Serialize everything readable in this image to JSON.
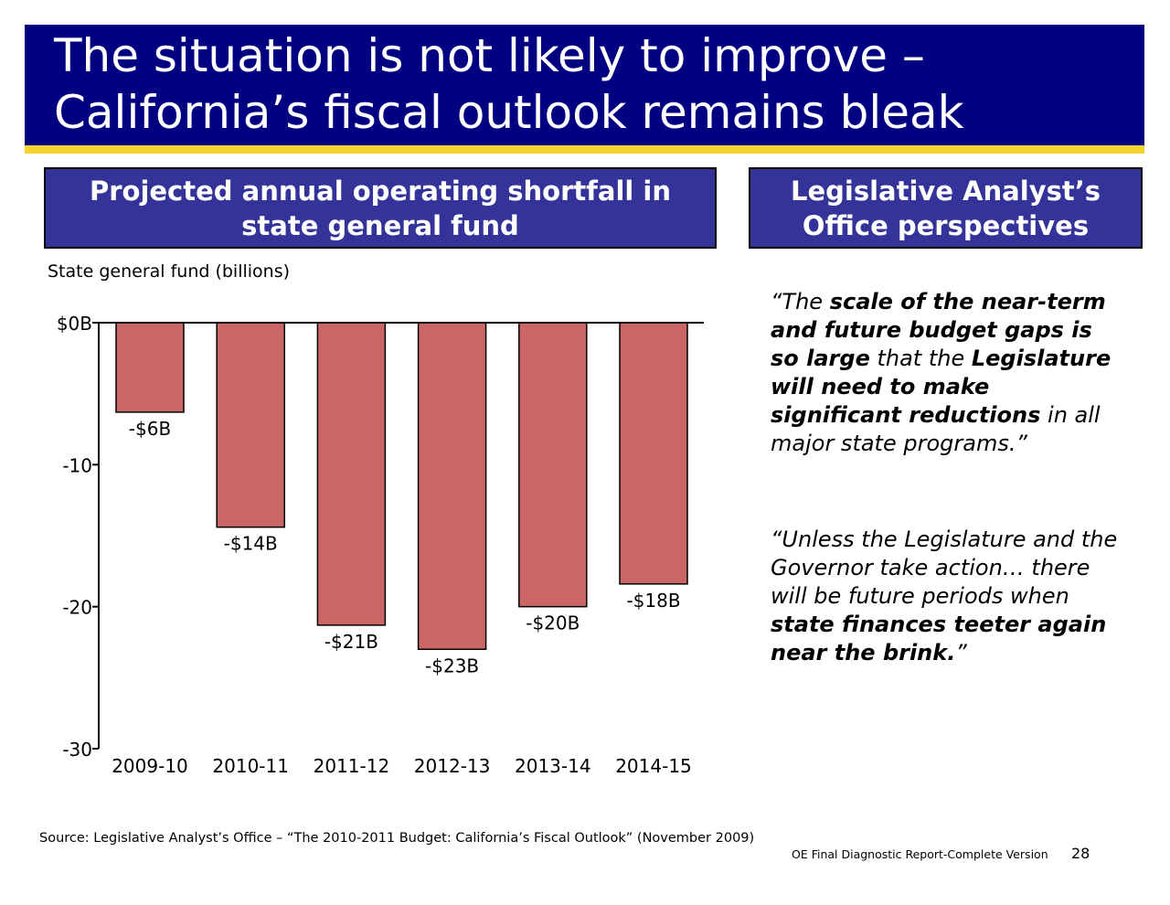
{
  "title": {
    "line1": "The situation is not likely to improve –",
    "line2": "California’s fiscal outlook remains bleak"
  },
  "left_header": {
    "line1": "Projected annual operating shortfall in",
    "line2": "state general fund"
  },
  "right_header": {
    "line1": "Legislative Analyst’s",
    "line2": "Office perspectives"
  },
  "colors": {
    "title_band": "#000080",
    "title_stripe": "#f5d22e",
    "header_box": "#33339a",
    "bar_fill": "#cc6666"
  },
  "chart_data": {
    "type": "bar",
    "unit_label": "State general fund (billions)",
    "categories": [
      "2009-10",
      "2010-11",
      "2011-12",
      "2012-13",
      "2013-14",
      "2014-15"
    ],
    "values": [
      -6.3,
      -14.4,
      -21.3,
      -23,
      -20,
      -18.4
    ],
    "data_labels": [
      "-$6B",
      "-$14B",
      "-$21B",
      "-$23B",
      "-$20B",
      "-$18B"
    ],
    "yticks": [
      0,
      -10,
      -20,
      -30
    ],
    "ytick_labels": [
      "$0B",
      "-10",
      "-20",
      "-30"
    ],
    "ylim": [
      -30,
      0
    ],
    "grid": false,
    "legend": "none"
  },
  "quotes": {
    "q1": [
      {
        "text": "“The ",
        "bold": false
      },
      {
        "text": "scale of the near-term and future budget gaps is so large",
        "bold": true
      },
      {
        "text": " that the ",
        "bold": false
      },
      {
        "text": "Legislature will need to make significant reductions",
        "bold": true
      },
      {
        "text": " in all major state programs.”",
        "bold": false
      }
    ],
    "q2": [
      {
        "text": "“Unless the Legislature and the Governor take action… there will be future periods when ",
        "bold": false
      },
      {
        "text": "state finances teeter again near the brink.",
        "bold": true
      },
      {
        "text": "”",
        "bold": false
      }
    ]
  },
  "footer": {
    "source": "Source: Legislative Analyst’s Office – “The 2010-2011 Budget: California’s Fiscal Outlook” (November 2009)",
    "report_label": "OE Final Diagnostic Report-Complete Version",
    "page_number": "28"
  }
}
